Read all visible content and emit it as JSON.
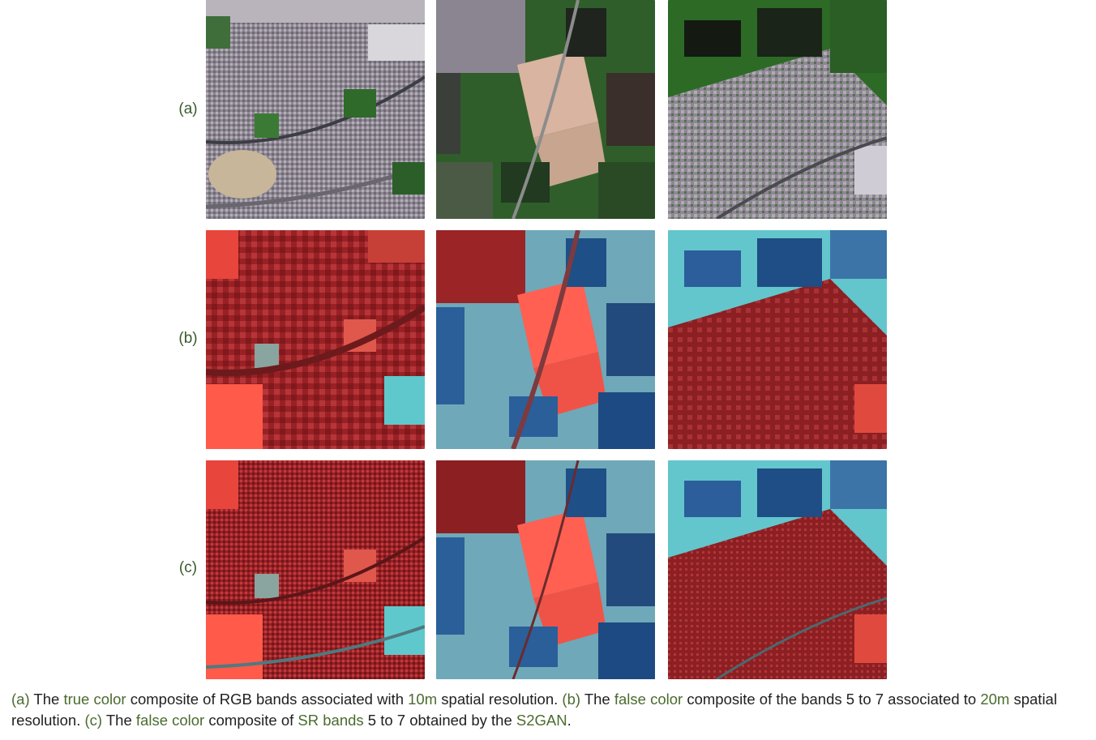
{
  "figure": {
    "rows": [
      {
        "label": "(a)",
        "kind": "true-color-rgb"
      },
      {
        "label": "(b)",
        "kind": "false-color-20m"
      },
      {
        "label": "(c)",
        "kind": "false-color-sr"
      }
    ],
    "columns": [
      "scene-1",
      "scene-2",
      "scene-3"
    ]
  },
  "caption": {
    "p1": "(a)",
    "p2": " The ",
    "p3": "true color",
    "p4": " composite of RGB bands associated with ",
    "p5": "10m",
    "p6": " spatial resolution. ",
    "p7": "(b)",
    "p8": " The ",
    "p9": "false color",
    "p10": " composite of the bands 5 to 7 associated to ",
    "p11": "20m",
    "p12": " spatial resolution. ",
    "p13": "(c)",
    "p14": " The ",
    "p15": "false color",
    "p16": " composite of ",
    "p17": "SR bands",
    "p18": " 5 to 7 obtained by the ",
    "p19": "S2GAN",
    "p20": "."
  },
  "colors": {
    "accent_text": "#4b6b2e",
    "urban_rgb": "#8a8590",
    "vegetation_rgb": "#2f6a2a",
    "urban_false": "#8e1b1e",
    "vegetation_false": "#ff5a4a",
    "water_false": "#2a5f9a",
    "bare_false": "#5fc8cc"
  }
}
